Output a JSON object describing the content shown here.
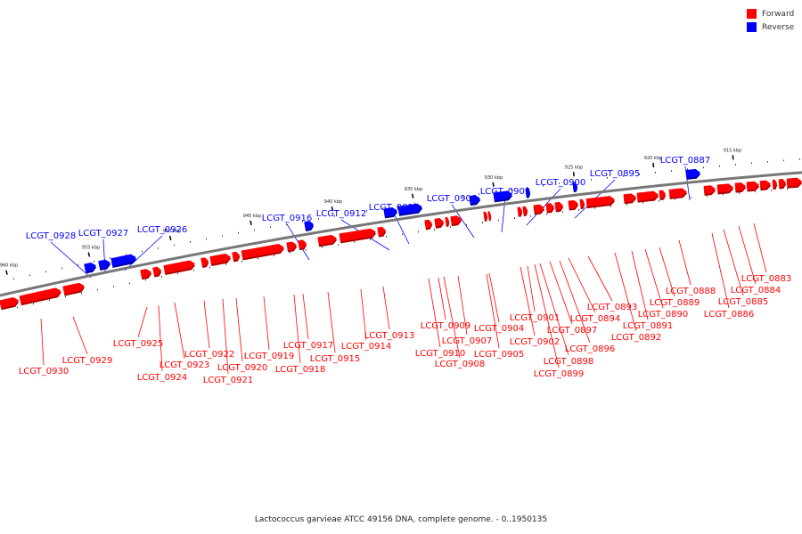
{
  "legend": {
    "forward_label": "Forward",
    "reverse_label": "Reverse",
    "forward_color": "#ff0000",
    "reverse_color": "#0000ff"
  },
  "caption": "Lactococcus garvieae ATCC 49156 DNA, complete genome. - 0..1950135",
  "ticks": [
    "960 kbp",
    "955 kbp",
    "950 kbp",
    "945 kbp",
    "940 kbp",
    "935 kbp",
    "930 kbp",
    "925 kbp",
    "920 kbp",
    "915 kbp"
  ],
  "reverse_genes": [
    "LCGT_0928",
    "LCGT_0927",
    "LCGT_0926",
    "LCGT_0916",
    "LCGT_0912",
    "LCGT_0911",
    "LCGT_0906",
    "LCGT_0903",
    "LCGT_0900",
    "LCGT_0895",
    "LCGT_0887"
  ],
  "forward_genes": [
    "LCGT_0930",
    "LCGT_0929",
    "LCGT_0925",
    "LCGT_0924",
    "LCGT_0923",
    "LCGT_0922",
    "LCGT_0921",
    "LCGT_0920",
    "LCGT_0919",
    "LCGT_0918",
    "LCGT_0917",
    "LCGT_0915",
    "LCGT_0914",
    "LCGT_0913",
    "LCGT_0910",
    "LCGT_0909",
    "LCGT_0908",
    "LCGT_0907",
    "LCGT_0905",
    "LCGT_0904",
    "LCGT_0902",
    "LCGT_0901",
    "LCGT_0899",
    "LCGT_0898",
    "LCGT_0897",
    "LCGT_0896",
    "LCGT_0894",
    "LCGT_0893",
    "LCGT_0892",
    "LCGT_0891",
    "LCGT_0890",
    "LCGT_0889",
    "LCGT_0888",
    "LCGT_0886",
    "LCGT_0885",
    "LCGT_0884",
    "LCGT_0883"
  ]
}
